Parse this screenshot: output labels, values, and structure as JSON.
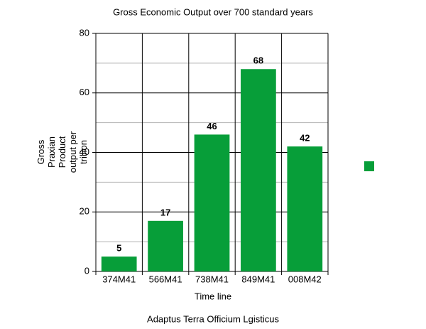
{
  "chart_data": {
    "type": "bar",
    "title": "Gross Economic Output over 700 standard years",
    "categories": [
      "374M41",
      "566M41",
      "738M41",
      "849M41",
      "008M42"
    ],
    "values": [
      5,
      17,
      46,
      68,
      42
    ],
    "color": "#079e39",
    "xlabel": "Time line",
    "ylabel": "Gross Praxian Product output per trillion",
    "caption": "Adaptus Terra Officium Lgisticus",
    "ylim": [
      0,
      80
    ],
    "yticks": [
      0,
      20,
      40,
      60,
      80
    ],
    "yminorticks": [
      10,
      30,
      50,
      70
    ],
    "grid": true,
    "legend": "right",
    "show_value_labels": true
  }
}
